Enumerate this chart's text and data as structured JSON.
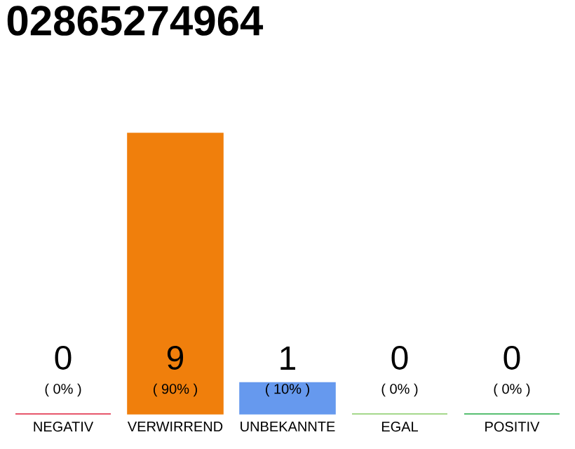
{
  "chart_data": {
    "type": "bar",
    "title": "02865274964",
    "data_labels": true,
    "categories": [
      "NEGATIV",
      "VERWIRREND",
      "UNBEKANNTE",
      "EGAL",
      "POSITIV"
    ],
    "values": [
      0,
      9,
      1,
      0,
      0
    ],
    "colors": [
      "#e0203c",
      "#f07f0c",
      "#6699ee",
      "#88cc66",
      "#22aa44"
    ],
    "annotations": [
      "( 0% )",
      "( 90% )",
      "( 10% )",
      "( 0% )",
      "( 0% )"
    ]
  }
}
